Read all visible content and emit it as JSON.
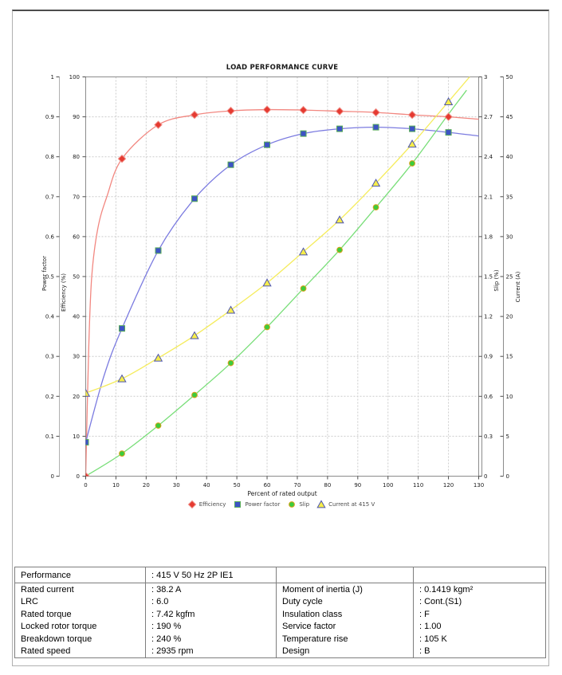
{
  "chart_data": {
    "type": "line",
    "title": "LOAD PERFORMANCE CURVE",
    "grid": true,
    "legend_position": "bottom",
    "x_axis": {
      "label": "Percent of rated output",
      "min": 0,
      "max": 130,
      "step": 10
    },
    "y_axes": [
      {
        "id": "power_factor",
        "label": "Power factor",
        "min": 0,
        "max": 1,
        "step": 0.1,
        "side": "left-outer"
      },
      {
        "id": "efficiency",
        "label": "Efficiency (%)",
        "min": 0,
        "max": 100,
        "step": 10,
        "side": "left"
      },
      {
        "id": "slip",
        "label": "Slip (%)",
        "min": 0,
        "max": 3,
        "step": 0.3,
        "side": "right"
      },
      {
        "id": "current",
        "label": "Current (A)",
        "min": 0,
        "max": 50,
        "step": 5,
        "side": "right-outer"
      }
    ],
    "series": [
      {
        "name": "Efficiency",
        "axis": "efficiency",
        "marker": "diamond",
        "line_color": "#f28780",
        "marker_fill": "#e53a31",
        "marker_stroke": "#f09089",
        "markers": [
          [
            0,
            0
          ],
          [
            12,
            79.5
          ],
          [
            24,
            88
          ],
          [
            36,
            90.5
          ],
          [
            48,
            91.5
          ],
          [
            60,
            91.8
          ],
          [
            72,
            91.7
          ],
          [
            84,
            91.4
          ],
          [
            96,
            91.1
          ],
          [
            108,
            90.5
          ],
          [
            120,
            90
          ]
        ],
        "line": [
          [
            0,
            0
          ],
          [
            1,
            32
          ],
          [
            2,
            50
          ],
          [
            4,
            62
          ],
          [
            7,
            70
          ],
          [
            12,
            79.5
          ],
          [
            24,
            88
          ],
          [
            36,
            90.5
          ],
          [
            48,
            91.5
          ],
          [
            60,
            91.8
          ],
          [
            72,
            91.7
          ],
          [
            84,
            91.4
          ],
          [
            96,
            91.1
          ],
          [
            108,
            90.5
          ],
          [
            120,
            90
          ],
          [
            130,
            89.4
          ]
        ]
      },
      {
        "name": "Power factor",
        "axis": "power_factor",
        "marker": "square",
        "line_color": "#7b7be0",
        "marker_fill": "#3d53c5",
        "marker_stroke": "#58ac58",
        "markers": [
          [
            0,
            0.085
          ],
          [
            12,
            0.37
          ],
          [
            24,
            0.565
          ],
          [
            36,
            0.695
          ],
          [
            48,
            0.78
          ],
          [
            60,
            0.83
          ],
          [
            72,
            0.858
          ],
          [
            84,
            0.87
          ],
          [
            96,
            0.874
          ],
          [
            108,
            0.87
          ],
          [
            120,
            0.861
          ]
        ],
        "line": [
          [
            0,
            0.085
          ],
          [
            6,
            0.25
          ],
          [
            12,
            0.37
          ],
          [
            24,
            0.565
          ],
          [
            36,
            0.695
          ],
          [
            48,
            0.78
          ],
          [
            60,
            0.83
          ],
          [
            72,
            0.858
          ],
          [
            84,
            0.87
          ],
          [
            96,
            0.874
          ],
          [
            108,
            0.87
          ],
          [
            120,
            0.861
          ],
          [
            130,
            0.852
          ]
        ]
      },
      {
        "name": "Slip",
        "axis": "slip",
        "marker": "circle",
        "line_color": "#78de78",
        "marker_fill": "#3ccc3c",
        "marker_stroke": "#dba018",
        "markers": [
          [
            12,
            0.17
          ],
          [
            24,
            0.38
          ],
          [
            36,
            0.61
          ],
          [
            48,
            0.85
          ],
          [
            60,
            1.12
          ],
          [
            72,
            1.41
          ],
          [
            84,
            1.7
          ],
          [
            96,
            2.02
          ],
          [
            108,
            2.35
          ]
        ],
        "line": [
          [
            0,
            0
          ],
          [
            12,
            0.17
          ],
          [
            24,
            0.38
          ],
          [
            36,
            0.61
          ],
          [
            48,
            0.85
          ],
          [
            60,
            1.12
          ],
          [
            72,
            1.41
          ],
          [
            84,
            1.7
          ],
          [
            96,
            2.02
          ],
          [
            108,
            2.35
          ],
          [
            120,
            2.72
          ],
          [
            126,
            2.9
          ]
        ]
      },
      {
        "name": "Current at 415 V",
        "axis": "current",
        "marker": "triangle",
        "line_color": "#f5ec5c",
        "marker_fill": "#f6ed4a",
        "marker_stroke": "#4d55b0",
        "markers": [
          [
            0,
            10.4
          ],
          [
            12,
            12.2
          ],
          [
            24,
            14.8
          ],
          [
            36,
            17.6
          ],
          [
            48,
            20.8
          ],
          [
            60,
            24.2
          ],
          [
            72,
            28.1
          ],
          [
            84,
            32.1
          ],
          [
            96,
            36.7
          ],
          [
            108,
            41.6
          ],
          [
            120,
            46.9
          ]
        ],
        "line": [
          [
            0,
            10.4
          ],
          [
            12,
            12.2
          ],
          [
            24,
            14.8
          ],
          [
            36,
            17.6
          ],
          [
            48,
            20.8
          ],
          [
            60,
            24.2
          ],
          [
            72,
            28.1
          ],
          [
            84,
            32.1
          ],
          [
            96,
            36.7
          ],
          [
            108,
            41.6
          ],
          [
            120,
            46.9
          ],
          [
            127,
            50
          ]
        ]
      }
    ]
  },
  "table": {
    "header": {
      "label": "Performance",
      "value": ": 415 V 50 Hz 2P IE1"
    },
    "left_rows": [
      {
        "label": "Rated current",
        "value": ": 38.2 A"
      },
      {
        "label": "LRC",
        "value": ": 6.0"
      },
      {
        "label": "Rated torque",
        "value": ": 7.42 kgfm"
      },
      {
        "label": "Locked rotor torque",
        "value": ": 190 %"
      },
      {
        "label": "Breakdown torque",
        "value": ": 240 %"
      },
      {
        "label": "Rated speed",
        "value": ": 2935 rpm"
      }
    ],
    "right_rows": [
      {
        "label": "Moment of inertia (J)",
        "value": ": 0.1419 kgm²"
      },
      {
        "label": "Duty cycle",
        "value": ": Cont.(S1)"
      },
      {
        "label": "Insulation class",
        "value": ": F"
      },
      {
        "label": "Service factor",
        "value": ": 1.00"
      },
      {
        "label": "Temperature rise",
        "value": ": 105 K"
      },
      {
        "label": "Design",
        "value": ": B"
      }
    ]
  }
}
